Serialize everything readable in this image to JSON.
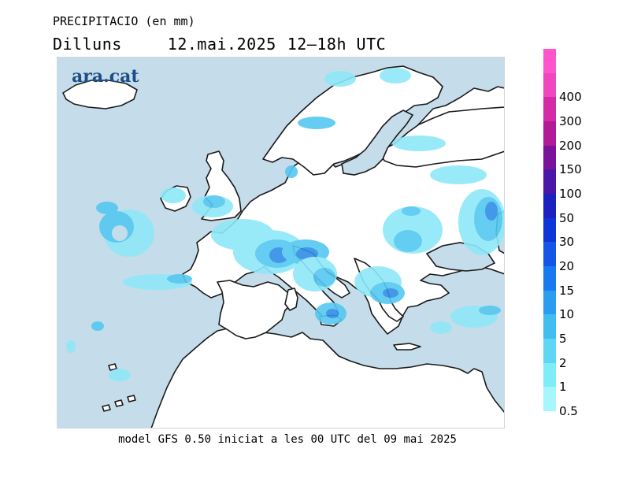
{
  "header": {
    "title": "PRECIPITACIO (en mm)",
    "day": "Dilluns",
    "date": "12.mai.2025",
    "period": "12–18h UTC"
  },
  "logo": "ara.cat",
  "footer": "model GFS 0.50 iniciat a les 00 UTC del 09 mai 2025",
  "colors": {
    "sea": "#c5dcea",
    "land": "#ffffff",
    "coast": "#1a1a1a",
    "precip_light": "#8fe8f8",
    "precip_mid": "#54c8f0",
    "precip_strong": "#2f8fe6"
  },
  "legend": {
    "levels": [
      {
        "label": "0.5",
        "color": "#a6f6fb"
      },
      {
        "label": "1",
        "color": "#7fedf8"
      },
      {
        "label": "2",
        "color": "#5fd6f3"
      },
      {
        "label": "5",
        "color": "#42bdf0"
      },
      {
        "label": "10",
        "color": "#2a9df0"
      },
      {
        "label": "15",
        "color": "#1879f0"
      },
      {
        "label": "20",
        "color": "#1456e6"
      },
      {
        "label": "30",
        "color": "#0d35d8"
      },
      {
        "label": "50",
        "color": "#1a22c0"
      },
      {
        "label": "100",
        "color": "#4b17a8"
      },
      {
        "label": "150",
        "color": "#7a139a"
      },
      {
        "label": "200",
        "color": "#b11b97"
      },
      {
        "label": "300",
        "color": "#d42aa6"
      },
      {
        "label": "400",
        "color": "#f046be"
      }
    ],
    "top_color": "#ff55cc"
  }
}
